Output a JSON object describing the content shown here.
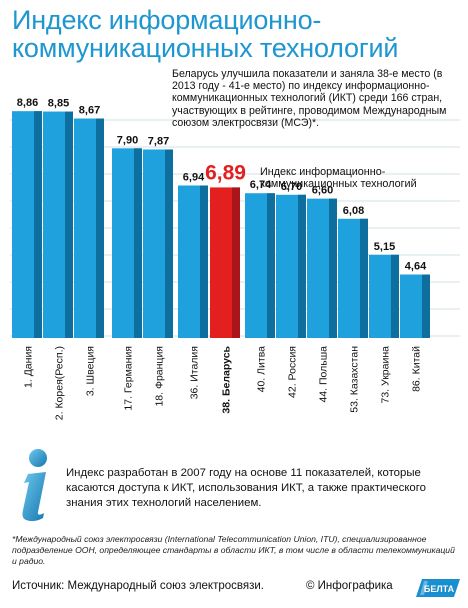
{
  "title": [
    "Индекс информационно-",
    "коммуникационных технологий"
  ],
  "description": "Беларусь улучшила показатели и заняла 38-е место (в 2013 году - 41-е место) по индексу информационно-коммуникационных технологий (ИКТ) среди 166 стран, участвующих в рейтинге, проводимом Международным союзом электросвязи (МСЭ)*.",
  "highlight_label": [
    "Индекс информационно-",
    "коммуникационных технологий"
  ],
  "chart_data": {
    "type": "bar",
    "categories": [
      "1. Дания",
      "2. Корея(Респ.)",
      "3. Швеция",
      "17. Германия",
      "18. Франция",
      "36. Италия",
      "38. Беларусь",
      "40. Литва",
      "42. Россия",
      "44. Польша",
      "53. Казахстан",
      "73. Украина",
      "86. Китай"
    ],
    "values": [
      8.86,
      8.85,
      8.67,
      7.9,
      7.87,
      6.94,
      6.89,
      6.74,
      6.7,
      6.6,
      6.08,
      5.15,
      4.64
    ],
    "value_labels": [
      "8,86",
      "8,85",
      "8,67",
      "7,90",
      "7,87",
      "6,94",
      "6,89",
      "6,74",
      "6,70",
      "6,60",
      "6,08",
      "5,15",
      "4,64"
    ],
    "highlight_index": 6,
    "ylim": [
      3.0,
      9.2
    ],
    "grid": true,
    "colors": {
      "bar": "#1ea1dc",
      "bar_dark": "#0e6f9f",
      "highlight": "#e41f1f",
      "highlight_dark": "#a8161a",
      "grid": "#7aa9c3"
    }
  },
  "info_text": "Индекс разработан в 2007 году на основе 11 показателей, которые касаются доступа к ИКТ, использования ИКТ, а также практического знания этих технологий населением.",
  "info_icon": "info-icon",
  "footnote": "*Международный союз электросвязи (International Telecommunication Union, ITU), специализированное подразделение ООН, определяющее стандарты в области ИКТ, в том числе в области телекоммуникаций и радио.",
  "source": "Источник: Международный союз электросвязи.",
  "credit": "© Инфографика",
  "logo_text": "БЕЛТА"
}
